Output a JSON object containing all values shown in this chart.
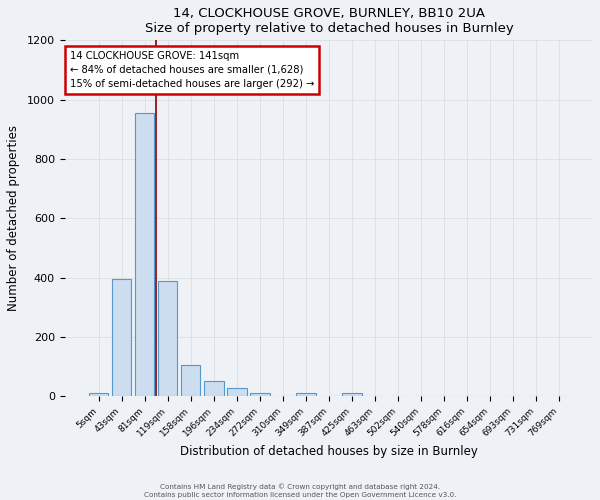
{
  "title": "14, CLOCKHOUSE GROVE, BURNLEY, BB10 2UA",
  "subtitle": "Size of property relative to detached houses in Burnley",
  "xlabel": "Distribution of detached houses by size in Burnley",
  "ylabel": "Number of detached properties",
  "footer_line1": "Contains HM Land Registry data © Crown copyright and database right 2024.",
  "footer_line2": "Contains public sector information licensed under the Open Government Licence v3.0.",
  "categories": [
    "5sqm",
    "43sqm",
    "81sqm",
    "119sqm",
    "158sqm",
    "196sqm",
    "234sqm",
    "272sqm",
    "310sqm",
    "349sqm",
    "387sqm",
    "425sqm",
    "463sqm",
    "502sqm",
    "540sqm",
    "578sqm",
    "616sqm",
    "654sqm",
    "693sqm",
    "731sqm",
    "769sqm"
  ],
  "values": [
    10,
    395,
    955,
    390,
    107,
    50,
    27,
    10,
    0,
    10,
    0,
    10,
    0,
    0,
    0,
    0,
    0,
    0,
    0,
    0,
    0
  ],
  "bar_color": "#ccddf0",
  "bar_edge_color": "#5599cc",
  "vline_color": "#8b0000",
  "vline_x_index": 2.5,
  "annotation_text": "14 CLOCKHOUSE GROVE: 141sqm\n← 84% of detached houses are smaller (1,628)\n15% of semi-detached houses are larger (292) →",
  "annotation_box_color": "#ffffff",
  "annotation_box_edge": "#cc0000",
  "ylim": [
    0,
    1200
  ],
  "yticks": [
    0,
    200,
    400,
    600,
    800,
    1000,
    1200
  ],
  "grid_color": "#e0e0e0",
  "bg_color": "#eef2f7",
  "plot_bg_color": "#eef2f7"
}
